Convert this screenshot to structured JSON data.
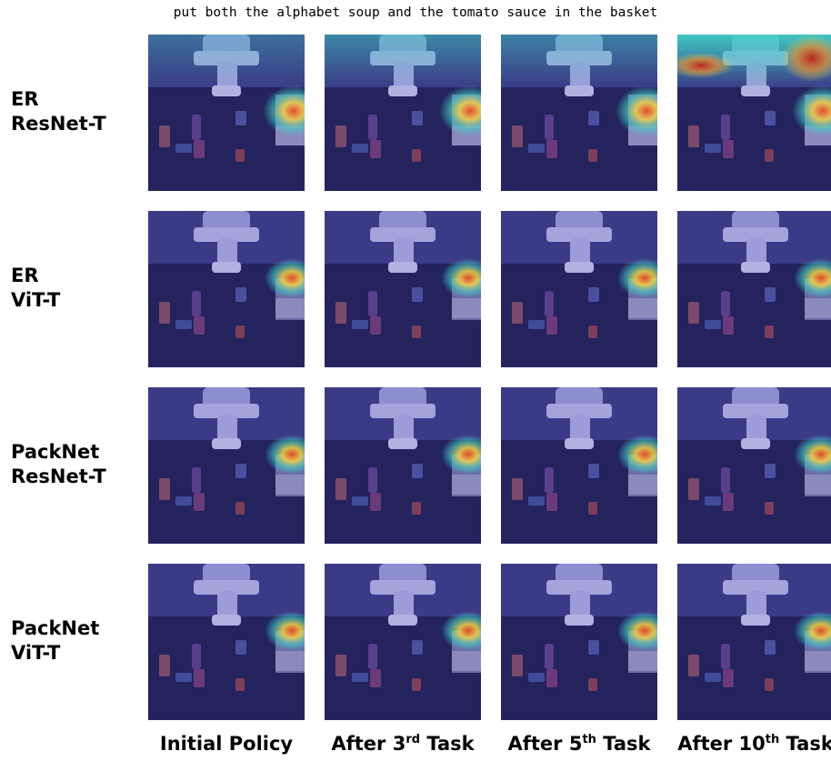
{
  "figure": {
    "caption": "put both the alphabet soup and the tomato sauce in the basket",
    "rows": [
      {
        "id": "er-resnet",
        "line1": "ER",
        "line2": "ResNet-T"
      },
      {
        "id": "er-vit",
        "line1": "ER",
        "line2": "ViT-T"
      },
      {
        "id": "packnet-resnet",
        "line1": "PackNet",
        "line2": "ResNet-T"
      },
      {
        "id": "packnet-vit",
        "line1": "PackNet",
        "line2": "ViT-T"
      }
    ],
    "columns": [
      {
        "id": "initial",
        "prefix": "Initial Policy",
        "sup": "",
        "suffix": ""
      },
      {
        "id": "after-3",
        "prefix": "After 3",
        "sup": "rd",
        "suffix": " Task"
      },
      {
        "id": "after-5",
        "prefix": "After 5",
        "sup": "th",
        "suffix": " Task"
      },
      {
        "id": "after-10",
        "prefix": "After 10",
        "sup": "th",
        "suffix": " Task"
      }
    ],
    "colors": {
      "background": "#2c2c6e",
      "floor": "#24235e",
      "heat_hot": "#e84a2a",
      "heat_warm": "#f5d64a",
      "heat_cool": "#3fd6c8"
    }
  }
}
